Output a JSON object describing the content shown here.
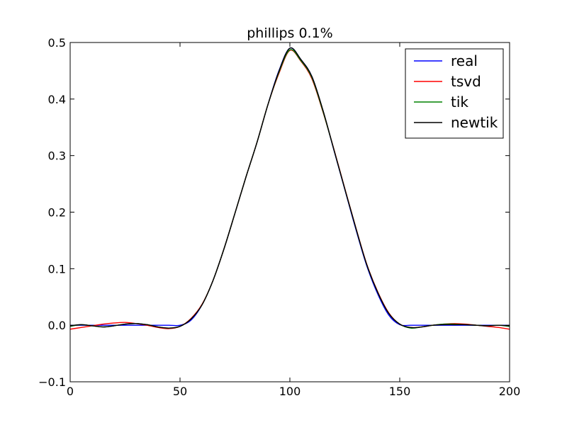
{
  "chart_data": {
    "type": "line",
    "title": "phillips 0.1%",
    "xlabel": "",
    "ylabel": "",
    "xlim": [
      0,
      200
    ],
    "ylim": [
      -0.1,
      0.5
    ],
    "xticks": [
      0,
      50,
      100,
      150,
      200
    ],
    "xtick_labels": [
      "0",
      "50",
      "100",
      "150",
      "200"
    ],
    "yticks": [
      -0.1,
      0.0,
      0.1,
      0.2,
      0.3,
      0.4,
      0.5
    ],
    "ytick_labels": [
      "−0.1",
      "0.0",
      "0.1",
      "0.2",
      "0.3",
      "0.4",
      "0.5"
    ],
    "grid": false,
    "legend_position": "top-right",
    "series": [
      {
        "name": "real",
        "color": "#0000ff",
        "x": [
          0,
          5,
          10,
          15,
          20,
          25,
          30,
          35,
          40,
          45,
          50,
          55,
          60,
          65,
          70,
          75,
          80,
          85,
          90,
          95,
          100,
          105,
          110,
          115,
          120,
          125,
          130,
          135,
          140,
          145,
          150,
          155,
          160,
          165,
          170,
          175,
          180,
          185,
          190,
          195,
          200
        ],
        "y": [
          0,
          0,
          0,
          0,
          0,
          0,
          0,
          0,
          0,
          0,
          0,
          0.009,
          0.036,
          0.079,
          0.135,
          0.198,
          0.262,
          0.323,
          0.39,
          0.45,
          0.49,
          0.47,
          0.44,
          0.38,
          0.31,
          0.24,
          0.17,
          0.105,
          0.055,
          0.018,
          0.001,
          0,
          0,
          0,
          0,
          0,
          0,
          0,
          0,
          0,
          0
        ]
      },
      {
        "name": "tsvd",
        "color": "#ff0000",
        "x": [
          0,
          5,
          10,
          15,
          20,
          25,
          30,
          35,
          40,
          45,
          50,
          55,
          60,
          65,
          70,
          75,
          80,
          85,
          90,
          95,
          100,
          105,
          110,
          115,
          120,
          125,
          130,
          135,
          140,
          145,
          150,
          155,
          160,
          165,
          170,
          175,
          180,
          185,
          190,
          195,
          200
        ],
        "y": [
          -0.007,
          -0.004,
          -0.001,
          0.002,
          0.004,
          0.005,
          0.003,
          0.0,
          -0.004,
          -0.006,
          -0.002,
          0.012,
          0.037,
          0.079,
          0.135,
          0.198,
          0.262,
          0.323,
          0.39,
          0.445,
          0.486,
          0.467,
          0.436,
          0.378,
          0.312,
          0.242,
          0.173,
          0.108,
          0.059,
          0.022,
          0.002,
          -0.004,
          -0.003,
          0.0,
          0.002,
          0.003,
          0.002,
          0.0,
          -0.002,
          -0.004,
          -0.007
        ]
      },
      {
        "name": "tik",
        "color": "#008000",
        "x": [
          0,
          5,
          10,
          15,
          20,
          25,
          30,
          35,
          40,
          45,
          50,
          55,
          60,
          65,
          70,
          75,
          80,
          85,
          90,
          95,
          100,
          105,
          110,
          115,
          120,
          125,
          130,
          135,
          140,
          145,
          150,
          155,
          160,
          165,
          170,
          175,
          180,
          185,
          190,
          195,
          200
        ],
        "y": [
          -0.002,
          0.001,
          -0.001,
          -0.003,
          -0.001,
          0.002,
          0.003,
          0.001,
          -0.003,
          -0.005,
          -0.002,
          0.011,
          0.036,
          0.079,
          0.135,
          0.198,
          0.262,
          0.323,
          0.39,
          0.447,
          0.487,
          0.468,
          0.438,
          0.379,
          0.311,
          0.241,
          0.172,
          0.107,
          0.058,
          0.021,
          0.002,
          -0.005,
          -0.003,
          0.0,
          0.002,
          0.002,
          0.001,
          0.0,
          -0.001,
          0.0,
          -0.002
        ]
      },
      {
        "name": "newtik",
        "color": "#000000",
        "x": [
          0,
          5,
          10,
          15,
          20,
          25,
          30,
          35,
          40,
          45,
          50,
          55,
          60,
          65,
          70,
          75,
          80,
          85,
          90,
          95,
          100,
          105,
          110,
          115,
          120,
          125,
          130,
          135,
          140,
          145,
          150,
          155,
          160,
          165,
          170,
          175,
          180,
          185,
          190,
          195,
          200
        ],
        "y": [
          -0.001,
          0.001,
          -0.001,
          -0.003,
          -0.001,
          0.002,
          0.003,
          0.001,
          -0.003,
          -0.005,
          -0.002,
          0.011,
          0.036,
          0.079,
          0.135,
          0.198,
          0.262,
          0.323,
          0.39,
          0.449,
          0.49,
          0.47,
          0.44,
          0.381,
          0.311,
          0.241,
          0.172,
          0.107,
          0.058,
          0.021,
          0.002,
          -0.004,
          -0.003,
          0.0,
          0.001,
          0.001,
          0.001,
          0.0,
          -0.001,
          0.0,
          -0.001
        ]
      }
    ]
  }
}
